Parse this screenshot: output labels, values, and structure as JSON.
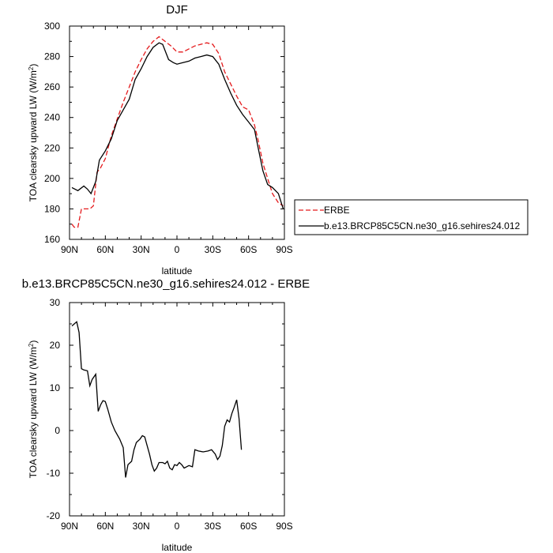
{
  "chart_data": [
    {
      "type": "line",
      "title": "DJF",
      "xlabel": "latitude",
      "ylabel": "TOA clearsky upward LW",
      "ylabel_unit_base": "W/m",
      "ylabel_unit_exp": "2",
      "x_ticks": [
        {
          "value": 90,
          "label": "90N"
        },
        {
          "value": 60,
          "label": "60N"
        },
        {
          "value": 30,
          "label": "30N"
        },
        {
          "value": 0,
          "label": "0"
        },
        {
          "value": -30,
          "label": "30S"
        },
        {
          "value": -60,
          "label": "60S"
        },
        {
          "value": -90,
          "label": "90S"
        }
      ],
      "xlim": [
        90,
        -90
      ],
      "ylim": [
        160,
        300
      ],
      "y_ticks": [
        160,
        180,
        200,
        220,
        240,
        260,
        280,
        300
      ],
      "legend": {
        "placement": "right",
        "entries": [
          "ERBE",
          "b.e13.BRCP85C5CN.ne30_g16.sehires24.012"
        ]
      },
      "series": [
        {
          "name": "ERBE",
          "color": "#e41a1c",
          "dash": true,
          "points": [
            [
              88,
              170
            ],
            [
              86,
              168
            ],
            [
              83,
              168
            ],
            [
              80,
              180
            ],
            [
              77,
              180
            ],
            [
              73,
              180
            ],
            [
              70,
              182
            ],
            [
              67,
              204
            ],
            [
              64,
              207
            ],
            [
              60,
              213
            ],
            [
              55,
              228
            ],
            [
              50,
              239
            ],
            [
              45,
              250
            ],
            [
              40,
              260
            ],
            [
              35,
              270
            ],
            [
              30,
              278
            ],
            [
              25,
              285
            ],
            [
              20,
              290
            ],
            [
              15,
              293
            ],
            [
              10,
              290
            ],
            [
              5,
              287
            ],
            [
              0,
              283
            ],
            [
              -5,
              283
            ],
            [
              -10,
              285
            ],
            [
              -15,
              287
            ],
            [
              -20,
              288
            ],
            [
              -25,
              289
            ],
            [
              -30,
              288
            ],
            [
              -35,
              282
            ],
            [
              -40,
              270
            ],
            [
              -45,
              262
            ],
            [
              -50,
              254
            ],
            [
              -55,
              247
            ],
            [
              -60,
              245
            ],
            [
              -65,
              235
            ],
            [
              -68,
              225
            ],
            [
              -72,
              210
            ],
            [
              -76,
              200
            ],
            [
              -80,
              190
            ],
            [
              -85,
              184
            ],
            [
              -89,
              182
            ]
          ]
        },
        {
          "name": "b.e13.BRCP85C5CN.ne30_g16.sehires24.012",
          "color": "#000000",
          "dash": false,
          "points": [
            [
              88,
              194
            ],
            [
              83,
              192
            ],
            [
              78,
              195
            ],
            [
              75,
              193
            ],
            [
              72,
              190
            ],
            [
              68,
              198
            ],
            [
              65,
              212
            ],
            [
              60,
              218
            ],
            [
              55,
              226
            ],
            [
              50,
              238
            ],
            [
              45,
              245
            ],
            [
              40,
              252
            ],
            [
              35,
              265
            ],
            [
              30,
              272
            ],
            [
              25,
              280
            ],
            [
              20,
              286
            ],
            [
              15,
              289
            ],
            [
              12,
              288
            ],
            [
              10,
              284
            ],
            [
              7,
              278
            ],
            [
              3,
              276
            ],
            [
              0,
              275
            ],
            [
              -5,
              276
            ],
            [
              -10,
              277
            ],
            [
              -15,
              279
            ],
            [
              -20,
              280
            ],
            [
              -25,
              281
            ],
            [
              -30,
              280
            ],
            [
              -35,
              275
            ],
            [
              -40,
              265
            ],
            [
              -45,
              256
            ],
            [
              -50,
              248
            ],
            [
              -55,
              242
            ],
            [
              -60,
              237
            ],
            [
              -65,
              232
            ],
            [
              -68,
              220
            ],
            [
              -72,
              205
            ],
            [
              -76,
              196
            ],
            [
              -80,
              194
            ],
            [
              -85,
              190
            ],
            [
              -89,
              180
            ]
          ]
        }
      ]
    },
    {
      "type": "line",
      "title": "b.e13.BRCP85C5CN.ne30_g16.sehires24.012 - ERBE",
      "xlabel": "latitude",
      "ylabel": "TOA clearsky upward LW",
      "ylabel_unit_base": "W/m",
      "ylabel_unit_exp": "2",
      "x_ticks": [
        {
          "value": 90,
          "label": "90N"
        },
        {
          "value": 60,
          "label": "60N"
        },
        {
          "value": 30,
          "label": "30N"
        },
        {
          "value": 0,
          "label": "0"
        },
        {
          "value": -30,
          "label": "30S"
        },
        {
          "value": -60,
          "label": "60S"
        },
        {
          "value": -90,
          "label": "90S"
        }
      ],
      "xlim": [
        90,
        -90
      ],
      "ylim": [
        -20,
        30
      ],
      "y_ticks": [
        -20,
        -10,
        0,
        10,
        20,
        30
      ],
      "series": [
        {
          "color": "#000000",
          "dash": false,
          "points": [
            [
              88,
              24.5
            ],
            [
              86,
              25
            ],
            [
              84,
              25.5
            ],
            [
              82,
              23
            ],
            [
              80,
              14.5
            ],
            [
              78,
              14.2
            ],
            [
              75,
              14
            ],
            [
              73,
              10.5
            ],
            [
              71,
              12
            ],
            [
              68,
              13.2
            ],
            [
              66,
              4.5
            ],
            [
              64,
              6
            ],
            [
              62,
              7
            ],
            [
              60,
              6.8
            ],
            [
              58,
              5
            ],
            [
              55,
              2
            ],
            [
              52,
              0
            ],
            [
              48,
              -2
            ],
            [
              45,
              -4
            ],
            [
              43,
              -11
            ],
            [
              41,
              -8
            ],
            [
              38,
              -7.2
            ],
            [
              36,
              -4.5
            ],
            [
              34,
              -2.8
            ],
            [
              31,
              -2
            ],
            [
              29,
              -1.2
            ],
            [
              27,
              -1.5
            ],
            [
              25,
              -3.5
            ],
            [
              23,
              -5.5
            ],
            [
              21,
              -8
            ],
            [
              19,
              -9.5
            ],
            [
              17,
              -8.8
            ],
            [
              15,
              -7.5
            ],
            [
              12,
              -7.5
            ],
            [
              10,
              -7.8
            ],
            [
              8,
              -7.2
            ],
            [
              6,
              -8.8
            ],
            [
              4,
              -9.2
            ],
            [
              2,
              -8
            ],
            [
              0,
              -8.2
            ],
            [
              -2,
              -7.5
            ],
            [
              -4,
              -8
            ],
            [
              -6,
              -8.8
            ],
            [
              -8,
              -8.5
            ],
            [
              -10,
              -8.2
            ],
            [
              -13,
              -8.5
            ],
            [
              -15,
              -4.5
            ],
            [
              -18,
              -4.8
            ],
            [
              -22,
              -5
            ],
            [
              -26,
              -4.8
            ],
            [
              -29,
              -4.5
            ],
            [
              -32,
              -5.5
            ],
            [
              -34,
              -6.8
            ],
            [
              -36,
              -6
            ],
            [
              -38,
              -3.5
            ],
            [
              -40,
              1
            ],
            [
              -42,
              2.5
            ],
            [
              -44,
              2
            ],
            [
              -46,
              4
            ],
            [
              -48,
              5.5
            ],
            [
              -50,
              7.2
            ],
            [
              -52,
              2.8
            ],
            [
              -54,
              -4.5
            ]
          ]
        }
      ]
    }
  ]
}
